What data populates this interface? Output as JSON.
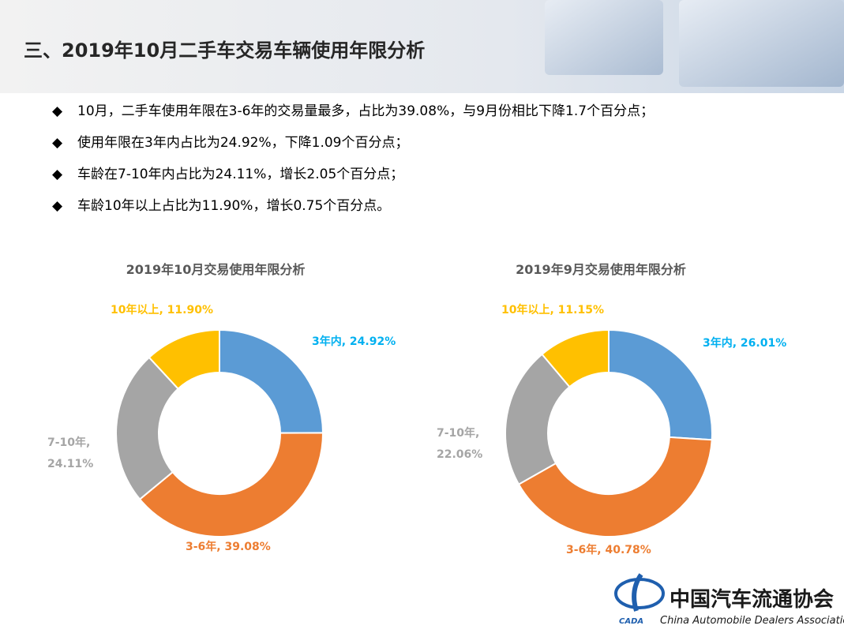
{
  "header": {
    "title": "三、2019年10月二手车交易车辆使用年限分析"
  },
  "bullets": [
    "10月，二手车使用年限在3-6年的交易量最多，占比为39.08%，与9月份相比下降1.7个百分点；",
    "使用年限在3年内占比为24.92%，下降1.09个百分点；",
    "车龄在7-10年内占比为24.11%，增长2.05个百分点；",
    "车龄10年以上占比为11.90%，增长0.75个百分点。"
  ],
  "chart_data": [
    {
      "type": "pie",
      "title": "2019年10月交易使用年限分析",
      "categories": [
        "3年内",
        "3-6年",
        "7-10年",
        "10年以上"
      ],
      "values": [
        24.92,
        39.08,
        24.11,
        11.9
      ],
      "value_labels": [
        "3年内, 24.92%",
        "3-6年, 39.08%",
        "7-10年,\n24.11%",
        "10年以上, 11.90%"
      ],
      "colors": [
        "#5b9bd5",
        "#ed7d31",
        "#a5a5a5",
        "#ffc000"
      ],
      "label_colors": [
        "#00b0f0",
        "#ed7d31",
        "#a5a5a5",
        "#ffc000"
      ]
    },
    {
      "type": "pie",
      "title": "2019年9月交易使用年限分析",
      "categories": [
        "3年内",
        "3-6年",
        "7-10年",
        "10年以上"
      ],
      "values": [
        26.01,
        40.78,
        22.06,
        11.15
      ],
      "value_labels": [
        "3年内, 26.01%",
        "3-6年, 40.78%",
        "7-10年,\n22.06%",
        "10年以上, 11.15%"
      ],
      "colors": [
        "#5b9bd5",
        "#ed7d31",
        "#a5a5a5",
        "#ffc000"
      ],
      "label_colors": [
        "#00b0f0",
        "#ed7d31",
        "#a5a5a5",
        "#ffc000"
      ]
    }
  ],
  "logo": {
    "name": "中国汽车流通协会",
    "english": "China Automobile Dealers Association",
    "abbr": "CADA"
  }
}
